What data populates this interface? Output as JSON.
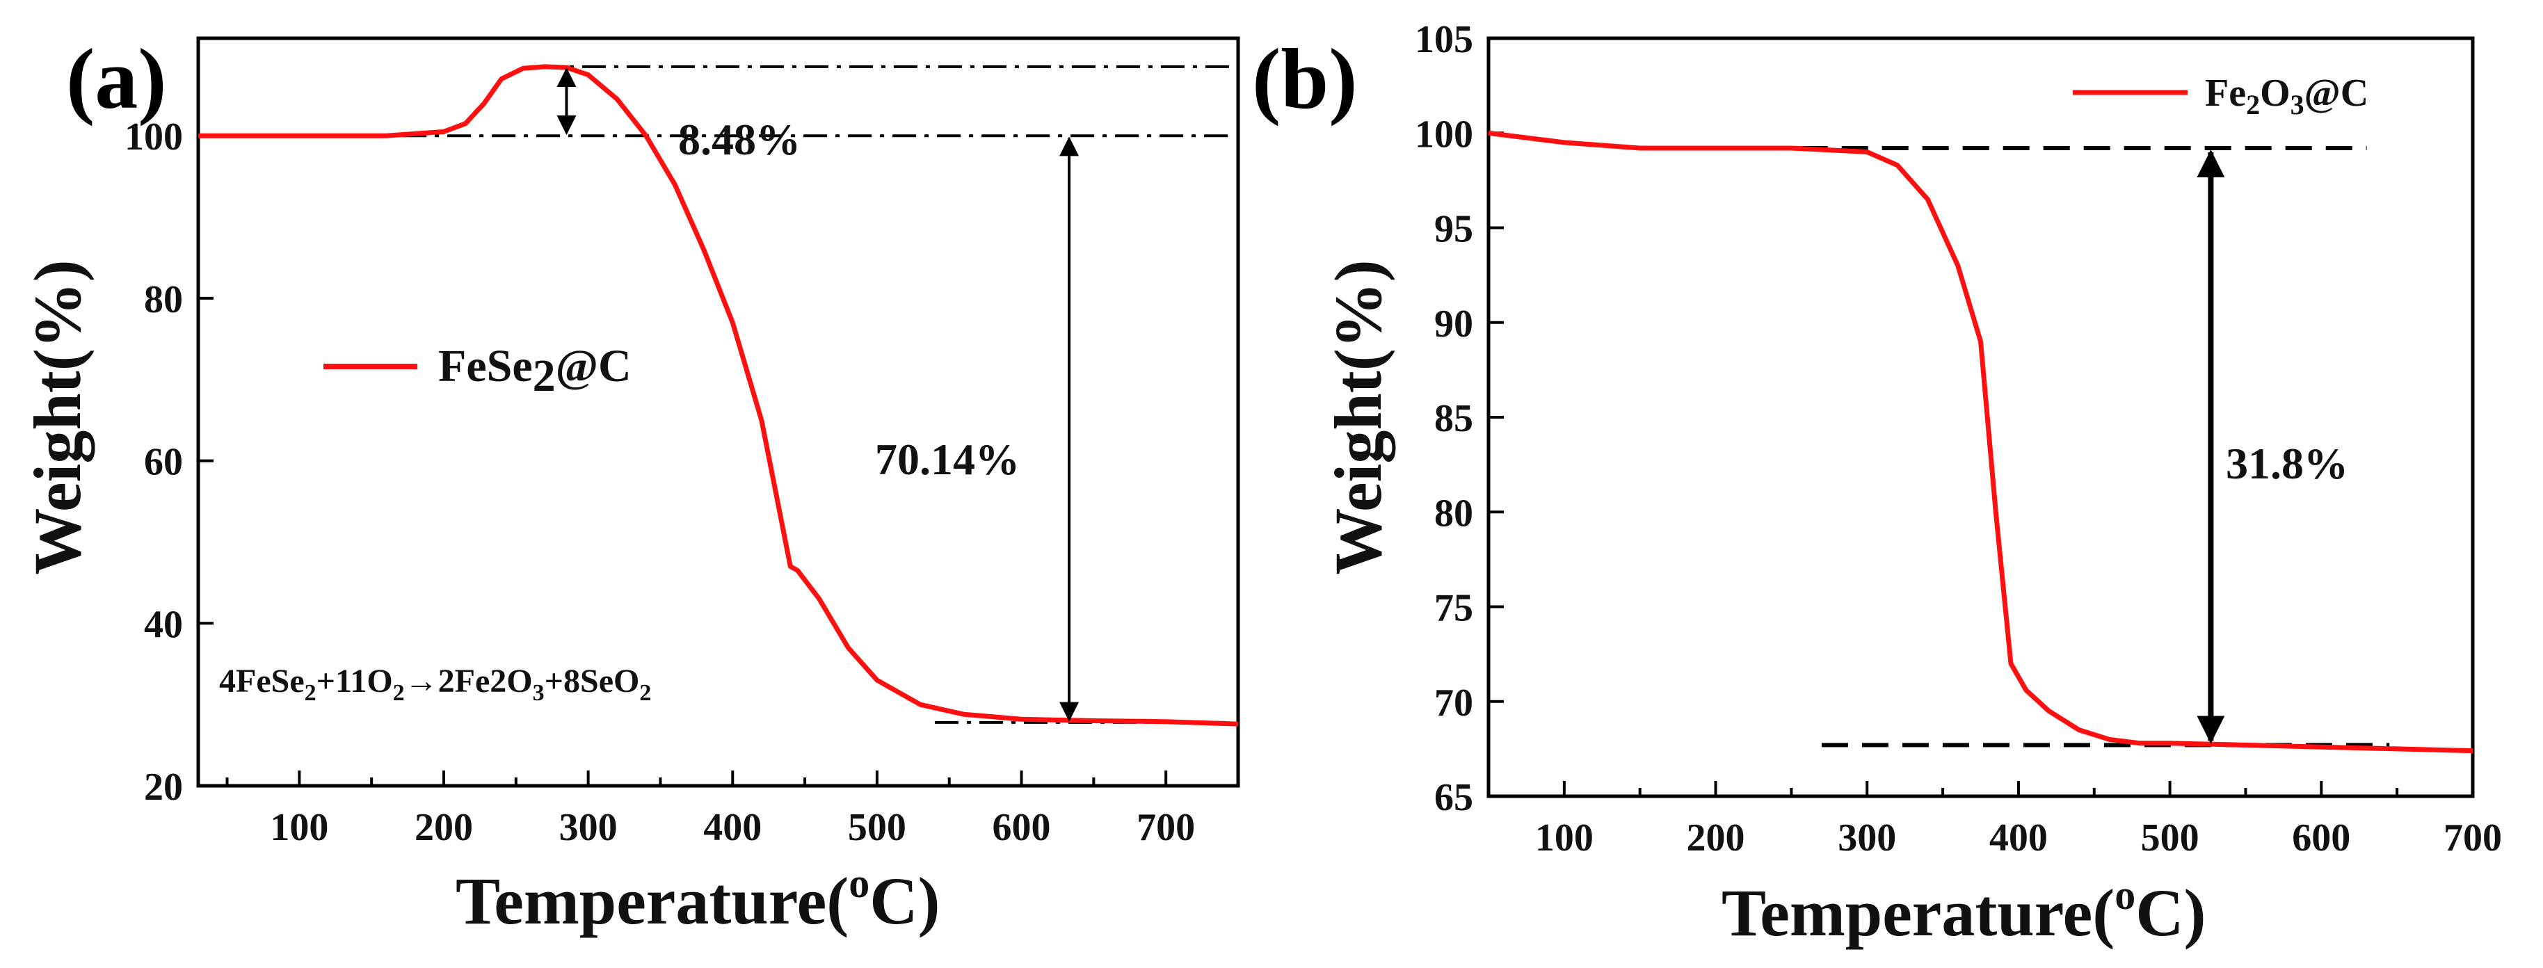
{
  "chart_data": [
    {
      "type": "line",
      "panel_label": "(a)",
      "xlabel": "Temperature(",
      "xlabel_sup": "o",
      "xlabel_unit": "C)",
      "ylabel": "Weight(%)",
      "xlim": [
        30,
        750
      ],
      "ylim": [
        20,
        112
      ],
      "xticks": [
        100,
        200,
        300,
        400,
        500,
        600,
        700
      ],
      "yticks": [
        20,
        40,
        60,
        80,
        100
      ],
      "series": [
        {
          "name": "FeSe2@C",
          "color": "#ff1010",
          "x": [
            30,
            100,
            160,
            200,
            215,
            228,
            240,
            255,
            270,
            285,
            300,
            320,
            340,
            360,
            380,
            400,
            420,
            430,
            440,
            445,
            460,
            480,
            500,
            530,
            560,
            600,
            650,
            700,
            750
          ],
          "y": [
            100,
            100,
            100,
            100.5,
            101.5,
            104,
            107,
            108.3,
            108.5,
            108.4,
            107.5,
            104.5,
            100,
            94,
            86,
            77,
            65,
            56,
            47,
            46.5,
            43,
            37,
            33,
            30,
            28.8,
            28.2,
            28,
            27.9,
            27.6
          ]
        }
      ],
      "legend": {
        "label": "FeSe",
        "sub": "2",
        "suffix": "@C",
        "placement": "center-left"
      },
      "reference_lines": {
        "upper": 108.5,
        "middle": 100,
        "lower": 27.8
      },
      "annotations": {
        "gain": "8.48%",
        "loss": "70.14%",
        "reaction": [
          {
            "t": "4FeSe",
            "k": "n"
          },
          {
            "t": "2",
            "k": "sub"
          },
          {
            "t": "+11O",
            "k": "n"
          },
          {
            "t": "2",
            "k": "sub"
          },
          {
            "t": "→2Fe2O",
            "k": "n"
          },
          {
            "t": "3",
            "k": "sub"
          },
          {
            "t": "+8SeO",
            "k": "n"
          },
          {
            "t": "2",
            "k": "sub"
          }
        ]
      }
    },
    {
      "type": "line",
      "panel_label": "(b)",
      "xlabel": "Temperature(",
      "xlabel_sup": "o",
      "xlabel_unit": "C)",
      "ylabel": "Weight(%)",
      "xlim": [
        50,
        700
      ],
      "ylim": [
        65,
        105
      ],
      "xticks": [
        100,
        200,
        300,
        400,
        500,
        600,
        700
      ],
      "yticks": [
        65,
        70,
        75,
        80,
        85,
        90,
        95,
        100,
        105
      ],
      "series": [
        {
          "name": "Fe2O3@C",
          "color": "#ff1010",
          "x": [
            50,
            100,
            150,
            200,
            250,
            300,
            320,
            340,
            360,
            375,
            385,
            395,
            405,
            420,
            440,
            460,
            480,
            500,
            550,
            600,
            650,
            700
          ],
          "y": [
            100,
            99.5,
            99.2,
            99.2,
            99.2,
            99.0,
            98.3,
            96.5,
            93,
            89,
            80,
            72,
            70.6,
            69.5,
            68.5,
            68,
            67.8,
            67.8,
            67.7,
            67.6,
            67.5,
            67.4
          ]
        }
      ],
      "legend": {
        "label": "Fe",
        "sub1": "2",
        "mid": "O",
        "sub2": "3",
        "suffix": "@C",
        "placement": "top-right"
      },
      "reference_lines": {
        "upper": 99.2,
        "lower": 67.7
      },
      "annotations": {
        "loss": "31.8%"
      }
    }
  ]
}
